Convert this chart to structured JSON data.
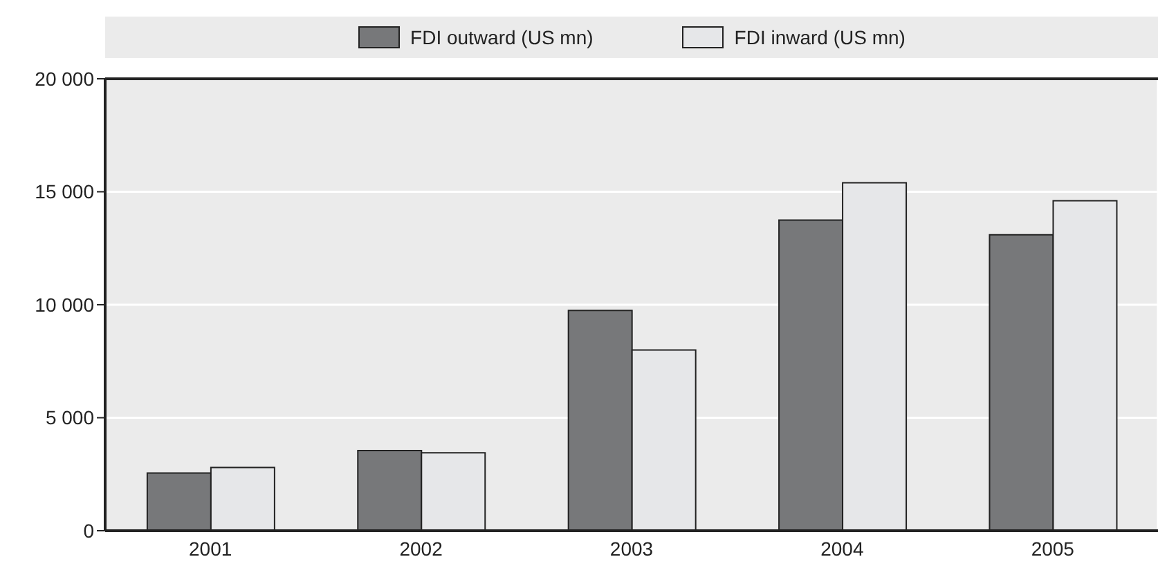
{
  "chart_data": {
    "type": "bar",
    "categories": [
      "2001",
      "2002",
      "2003",
      "2004",
      "2005"
    ],
    "series": [
      {
        "name": "FDI outward (US mn)",
        "color": "#77787a",
        "values": [
          2550,
          3550,
          9750,
          13750,
          13100
        ]
      },
      {
        "name": "FDI inward (US mn)",
        "color": "#e6e7e9",
        "values": [
          2800,
          3450,
          8000,
          15400,
          14600
        ]
      }
    ],
    "ylim": [
      0,
      20000
    ],
    "yticks": [
      {
        "value": 0,
        "label": "0"
      },
      {
        "value": 5000,
        "label": "5 000"
      },
      {
        "value": 10000,
        "label": "10 000"
      },
      {
        "value": 15000,
        "label": "15 000"
      },
      {
        "value": 20000,
        "label": "20 000"
      }
    ],
    "grid": true,
    "legend": "top"
  }
}
